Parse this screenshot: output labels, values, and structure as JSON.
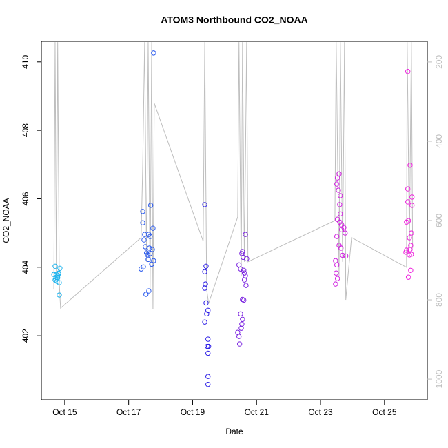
{
  "chart_data": {
    "type": "scatter",
    "title": "ATOM3 Northbound CO2_NOAA",
    "xlabel": "Date",
    "ylabel": "CO2_NOAA",
    "xlim": [
      14.27,
      26.34
    ],
    "ylim": [
      400.13,
      410.6
    ],
    "y2lim": [
      1052,
      148
    ],
    "xticks": [
      {
        "value": 15,
        "label": "Oct 15"
      },
      {
        "value": 17,
        "label": "Oct 17"
      },
      {
        "value": 19,
        "label": "Oct 19"
      },
      {
        "value": 21,
        "label": "Oct 21"
      },
      {
        "value": 23,
        "label": "Oct 23"
      },
      {
        "value": 25,
        "label": "Oct 25"
      }
    ],
    "yticks": [
      402,
      404,
      406,
      408,
      410
    ],
    "y2ticks": [
      200,
      400,
      600,
      800,
      1000
    ],
    "series": [
      {
        "type": "line",
        "axis": "y2",
        "color": "#bebebe",
        "x": [
          14.66,
          14.7,
          14.74,
          14.78,
          14.83,
          14.87,
          17.39,
          17.44,
          17.5,
          17.56,
          17.61,
          17.67,
          17.72,
          17.76,
          17.8,
          19.33,
          19.38,
          19.44,
          19.5,
          20.41,
          20.45,
          20.52,
          20.56,
          20.62,
          20.69,
          20.73,
          23.45,
          23.49,
          23.58,
          23.62,
          23.69,
          23.75,
          23.79,
          23.97,
          25.69,
          25.71,
          25.78,
          25.84,
          25.88
        ],
        "values": [
          774,
          150,
          739,
          150,
          757,
          821,
          643,
          461,
          150,
          704,
          150,
          774,
          150,
          823,
          304,
          652,
          150,
          774,
          809,
          591,
          150,
          739,
          150,
          704,
          150,
          704,
          600,
          150,
          739,
          150,
          704,
          150,
          800,
          643,
          718,
          150,
          670,
          150,
          670
        ]
      },
      {
        "color": "#1eb4ee",
        "x": [
          14.7,
          14.74,
          14.78,
          14.66,
          14.72,
          14.81,
          14.76,
          14.7,
          14.83,
          14.78,
          14.85,
          14.83,
          14.74,
          14.81
        ],
        "values": [
          404.03,
          403.79,
          403.75,
          403.79,
          403.67,
          403.81,
          403.59,
          403.63,
          403.55,
          403.69,
          403.97,
          403.19,
          403.71,
          403.83
        ]
      },
      {
        "color": "#2a5aee",
        "x": [
          17.44,
          17.44,
          17.48,
          17.5,
          17.52,
          17.56,
          17.59,
          17.61,
          17.63,
          17.65,
          17.67,
          17.69,
          17.72,
          17.74,
          17.76,
          17.78,
          17.54,
          17.63,
          17.39,
          17.46,
          17.78,
          17.67
        ],
        "values": [
          405.63,
          405.3,
          404.8,
          404.96,
          404.6,
          404.42,
          404.36,
          404.23,
          404.96,
          404.56,
          404.4,
          405.81,
          404.09,
          404.52,
          405.14,
          404.19,
          403.21,
          403.31,
          403.95,
          404.01,
          410.26,
          404.9
        ]
      },
      {
        "color": "#2d1fe6",
        "x": [
          19.38,
          19.42,
          19.38,
          19.4,
          19.38,
          19.42,
          19.48,
          19.44,
          19.38,
          19.48,
          19.46,
          19.5,
          19.48,
          19.48,
          19.48
        ],
        "values": [
          405.83,
          404.03,
          403.87,
          403.51,
          403.39,
          402.96,
          402.74,
          402.64,
          402.4,
          401.9,
          401.69,
          401.69,
          401.49,
          400.81,
          400.58
        ]
      },
      {
        "color": "#7a22e0",
        "x": [
          20.65,
          20.45,
          20.5,
          20.54,
          20.56,
          20.58,
          20.6,
          20.62,
          20.65,
          20.67,
          20.69,
          20.62,
          20.56,
          20.6,
          20.5,
          20.54,
          20.56,
          20.52,
          20.41,
          20.45,
          20.47
        ],
        "values": [
          404.96,
          404.07,
          403.95,
          404.4,
          404.46,
          404.29,
          403.91,
          403.83,
          403.75,
          403.47,
          404.25,
          403.63,
          403.06,
          403.04,
          402.64,
          402.34,
          402.48,
          402.22,
          402.1,
          401.98,
          401.76
        ]
      },
      {
        "color": "#d020e0",
        "x": [
          23.58,
          23.51,
          23.56,
          23.62,
          23.6,
          23.62,
          23.53,
          23.6,
          23.66,
          23.73,
          23.77,
          23.51,
          23.58,
          23.64,
          23.69,
          23.79,
          23.47,
          23.51,
          23.49,
          23.53,
          23.47,
          23.53,
          23.66
        ],
        "values": [
          406.73,
          406.43,
          406.25,
          406.09,
          405.83,
          405.56,
          405.4,
          405.32,
          405.24,
          405.16,
          405.0,
          404.9,
          404.64,
          404.56,
          404.35,
          404.33,
          404.19,
          404.07,
          403.83,
          403.67,
          403.51,
          406.61,
          405.1
        ]
      },
      {
        "color": "#ee22dd",
        "x": [
          25.73,
          25.8,
          25.73,
          25.86,
          25.73,
          25.86,
          25.75,
          25.69,
          25.84,
          25.78,
          25.82,
          25.69,
          25.8,
          25.84,
          25.78,
          25.67,
          25.82,
          25.75
        ],
        "values": [
          409.72,
          406.98,
          406.29,
          406.05,
          405.91,
          405.81,
          405.36,
          405.32,
          405.0,
          404.86,
          404.64,
          404.5,
          404.52,
          404.38,
          404.36,
          404.44,
          403.91,
          403.71
        ]
      }
    ]
  }
}
